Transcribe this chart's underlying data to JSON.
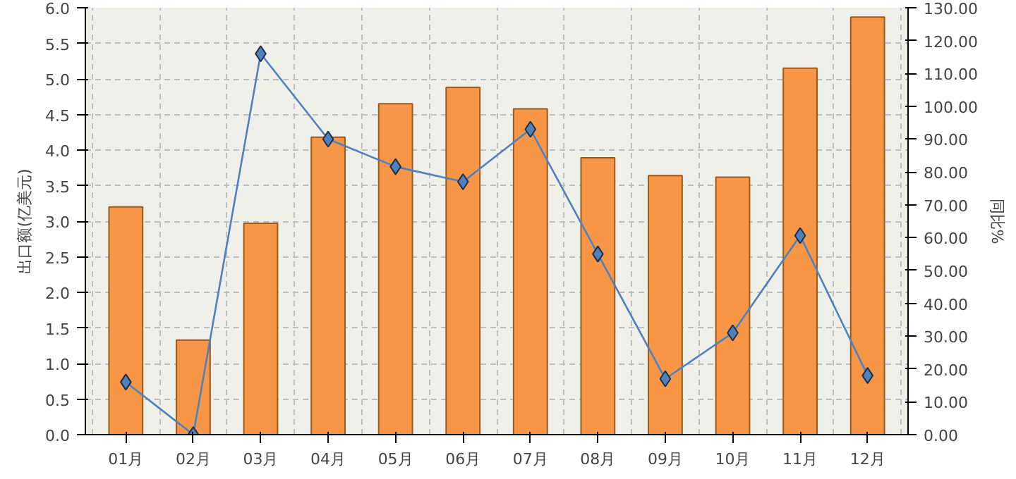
{
  "chart_data": {
    "type": "bar",
    "ylabel": "出口额(亿美元)",
    "y2label": "同比%",
    "categories": [
      "01月",
      "02月",
      "03月",
      "04月",
      "05月",
      "06月",
      "07月",
      "08月",
      "09月",
      "10月",
      "11月",
      "12月"
    ],
    "series": [
      {
        "color": "#f79646",
        "values": [
          3.2,
          1.33,
          2.97,
          4.18,
          4.65,
          4.88,
          4.58,
          3.89,
          3.64,
          3.62,
          5.15,
          5.87
        ]
      },
      {
        "type": "line",
        "axis": "y2",
        "color": "#4f81bd",
        "marker": "diamond",
        "values": [
          16,
          0,
          116,
          90,
          81.6,
          77,
          93,
          55,
          17,
          31,
          60.6,
          18
        ]
      }
    ],
    "ylim": [
      0,
      6
    ],
    "yticks": [
      {
        "value": 0,
        "label": "0.0"
      },
      {
        "value": 0.5,
        "label": "0.5"
      },
      {
        "value": 1,
        "label": "1.0"
      },
      {
        "value": 1.5,
        "label": "1.5"
      },
      {
        "value": 2,
        "label": "2.0"
      },
      {
        "value": 2.5,
        "label": "2.5"
      },
      {
        "value": 3,
        "label": "3.0"
      },
      {
        "value": 3.5,
        "label": "3.5"
      },
      {
        "value": 4,
        "label": "4.0"
      },
      {
        "value": 4.5,
        "label": "4.5"
      },
      {
        "value": 5,
        "label": "5.0"
      },
      {
        "value": 5.5,
        "label": "5.5"
      },
      {
        "value": 6,
        "label": "6.0"
      }
    ],
    "y2lim": [
      0,
      130
    ],
    "y2ticks": [
      {
        "value": 0,
        "label": "0.00"
      },
      {
        "value": 10,
        "label": "10.00"
      },
      {
        "value": 20,
        "label": "20.00"
      },
      {
        "value": 30,
        "label": "30.00"
      },
      {
        "value": 40,
        "label": "40.00"
      },
      {
        "value": 50,
        "label": "50.00"
      },
      {
        "value": 60,
        "label": "60.00"
      },
      {
        "value": 70,
        "label": "70.00"
      },
      {
        "value": 80,
        "label": "80.00"
      },
      {
        "value": 90,
        "label": "90.00"
      },
      {
        "value": 100,
        "label": "100.00"
      },
      {
        "value": 110,
        "label": "110.00"
      },
      {
        "value": 120,
        "label": "120.00"
      },
      {
        "value": 130,
        "label": "130.00"
      }
    ],
    "grid": true
  }
}
